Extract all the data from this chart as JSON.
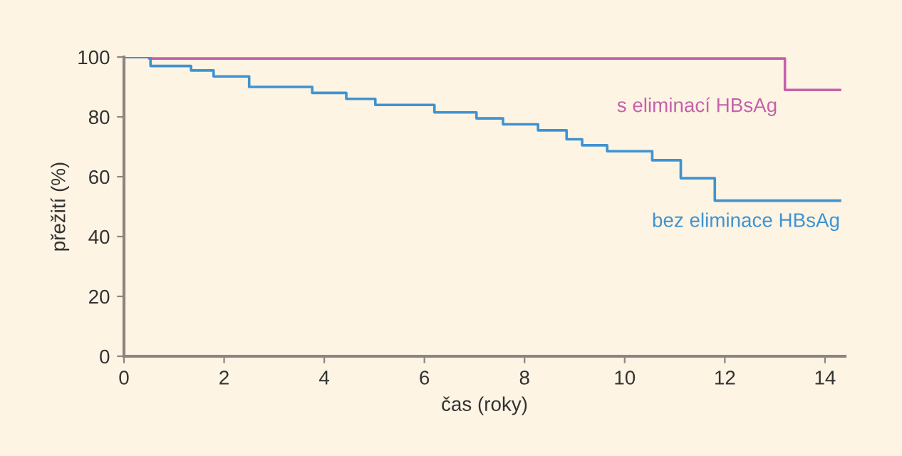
{
  "chart_data": {
    "type": "step",
    "xlabel": "čas (roky)",
    "ylabel": "přežití (%)",
    "series": [
      {
        "name": "s eliminací HBsAg",
        "color": "#c462aa",
        "x": [
          0,
          0.5,
          13.2,
          14.3
        ],
        "values": [
          100,
          99.5,
          89,
          89
        ]
      },
      {
        "name": "bez eliminace HBsAg",
        "color": "#3f93d0",
        "x": [
          0,
          0.53,
          1.34,
          1.79,
          2.5,
          3.76,
          4.44,
          5.02,
          6.2,
          7.04,
          7.57,
          8.27,
          8.84,
          9.15,
          9.65,
          10.55,
          11.12,
          11.8,
          14.3
        ],
        "values": [
          100,
          97,
          95.5,
          93.5,
          90,
          88,
          86,
          84,
          81.5,
          79.5,
          77.5,
          75.5,
          72.5,
          70.5,
          68.5,
          65.5,
          59.5,
          52,
          52
        ]
      }
    ],
    "xlim": [
      0,
      14.4
    ],
    "xticks": [
      0,
      2,
      4,
      6,
      8,
      10,
      12,
      14
    ],
    "ylim": [
      0,
      100
    ],
    "yticks": [
      0,
      20,
      40,
      60,
      80,
      100
    ],
    "grid": false,
    "legend": false,
    "marker": "none",
    "line_style": "solid"
  }
}
